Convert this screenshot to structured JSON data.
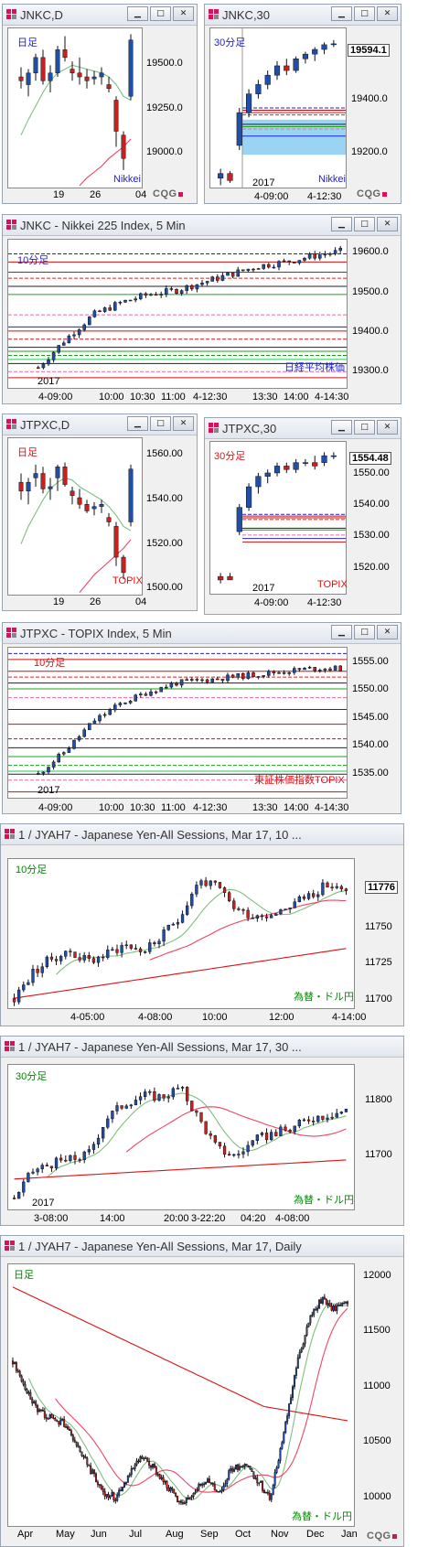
{
  "windows": [
    {
      "title": "JNKC,D"
    },
    {
      "title": "JNKC,30"
    },
    {
      "title": "JNKC - Nikkei 225 Index, 5 Min"
    },
    {
      "title": "JTPXC,D"
    },
    {
      "title": "JTPXC,30"
    },
    {
      "title": "JTPXC - TOPIX Index, 5 Min"
    },
    {
      "title": "1 / JYAH7 - Japanese Yen-All Sessions, Mar 17, 10 ..."
    },
    {
      "title": "1 / JYAH7 - Japanese Yen-All Sessions, Mar 17, 30 ..."
    },
    {
      "title": "1 / JYAH7 - Japanese Yen-All Sessions, Mar 17, Daily"
    }
  ],
  "colors": {
    "up": "#1f4fa8",
    "down": "#cc1f1f",
    "ma_short": "#7fbf7f",
    "ma_long": "#ee4466",
    "ma_red": "#dd1111",
    "blue_label": "#2222cc",
    "red_label": "#dd1111",
    "green_label": "#008800"
  },
  "cqg_label": "CQG",
  "chart_data": [
    {
      "type": "candlestick",
      "label": "日足",
      "note": "Nikkei",
      "x_ticks": [
        "19",
        "26",
        "04"
      ],
      "y_ticks": [
        "19500.0",
        "19250.0",
        "19000.0"
      ],
      "ylim": [
        18830,
        19650
      ],
      "candles": [
        [
          19400,
          19450,
          19340,
          19380
        ],
        [
          19360,
          19440,
          19300,
          19420
        ],
        [
          19420,
          19520,
          19380,
          19500
        ],
        [
          19500,
          19540,
          19360,
          19380
        ],
        [
          19380,
          19460,
          19320,
          19420
        ],
        [
          19420,
          19560,
          19400,
          19540
        ],
        [
          19540,
          19610,
          19480,
          19500
        ],
        [
          19440,
          19480,
          19380,
          19420
        ],
        [
          19420,
          19500,
          19360,
          19400
        ],
        [
          19400,
          19440,
          19340,
          19380
        ],
        [
          19390,
          19430,
          19360,
          19400
        ],
        [
          19400,
          19450,
          19360,
          19420
        ],
        [
          19360,
          19400,
          19320,
          19340
        ],
        [
          19280,
          19300,
          19040,
          19120
        ],
        [
          19100,
          19120,
          18920,
          18980
        ],
        [
          19300,
          19620,
          19280,
          19590
        ]
      ],
      "ma_short": [
        19100,
        19180,
        19250,
        19320,
        19380,
        19420,
        19440,
        19460,
        19450,
        19440,
        19430,
        19420,
        19400,
        19360,
        19300,
        19280
      ],
      "ma_long": [
        null,
        null,
        null,
        null,
        null,
        null,
        null,
        null,
        18840,
        18880,
        18910,
        18940,
        18980,
        19010,
        19040,
        19080
      ]
    },
    {
      "type": "candlestick",
      "label": "30分足",
      "note": "Nikkei",
      "year": "2017",
      "x_ticks": [
        "4-09:00",
        "4-12:30"
      ],
      "y_ticks": [
        "19400.0",
        "19200.0"
      ],
      "ylim": [
        18980,
        19660
      ],
      "last": "19594.1",
      "candles": [
        [
          19020,
          19060,
          18990,
          19040
        ],
        [
          19040,
          19050,
          19000,
          19010
        ],
        [
          19160,
          19320,
          19140,
          19300
        ],
        [
          19300,
          19400,
          19280,
          19380
        ],
        [
          19380,
          19440,
          19360,
          19420
        ],
        [
          19420,
          19480,
          19400,
          19460
        ],
        [
          19460,
          19520,
          19440,
          19500
        ],
        [
          19500,
          19530,
          19460,
          19480
        ],
        [
          19480,
          19540,
          19470,
          19530
        ],
        [
          19530,
          19560,
          19510,
          19550
        ],
        [
          19550,
          19580,
          19520,
          19570
        ],
        [
          19570,
          19600,
          19550,
          19590
        ],
        [
          19590,
          19610,
          19580,
          19594
        ]
      ],
      "levels": [
        19320,
        19310,
        19300,
        19290,
        19250,
        19240,
        19230,
        19200
      ],
      "zone": [
        19120,
        19270
      ]
    },
    {
      "type": "candlestick",
      "label": "10分足",
      "note": "日経平均株価",
      "year": "2017",
      "x_ticks": [
        "4-09:00",
        "10:00",
        "10:30",
        "11:00",
        "4-12:30",
        "13:30",
        "14:00",
        "4-14:30"
      ],
      "y_ticks": [
        "19600.0",
        "19500.0",
        "19400.0",
        "19300.0"
      ],
      "ylim": [
        19260,
        19625
      ],
      "candles_count": 60,
      "start": 19310,
      "end": 19596,
      "levels": [
        19590,
        19570,
        19545,
        19530,
        19510,
        19490,
        19440,
        19410,
        19400,
        19380,
        19360,
        19350,
        19340,
        19330,
        19320,
        19300,
        19285
      ]
    },
    {
      "type": "candlestick",
      "label": "日足",
      "note": "TOPIX",
      "x_ticks": [
        "19",
        "26",
        "04"
      ],
      "y_ticks": [
        "1560.00",
        "1540.00",
        "1520.00",
        "1500.00"
      ],
      "ylim": [
        1497,
        1568
      ],
      "candles": [
        [
          1548,
          1552,
          1540,
          1544
        ],
        [
          1544,
          1550,
          1538,
          1548
        ],
        [
          1550,
          1556,
          1546,
          1552
        ],
        [
          1552,
          1555,
          1543,
          1545
        ],
        [
          1545,
          1550,
          1540,
          1546
        ],
        [
          1550,
          1556,
          1544,
          1555
        ],
        [
          1555,
          1557,
          1546,
          1547
        ],
        [
          1544,
          1546,
          1538,
          1542
        ],
        [
          1541,
          1545,
          1536,
          1538
        ],
        [
          1538,
          1540,
          1534,
          1535
        ],
        [
          1536,
          1539,
          1533,
          1537
        ],
        [
          1537,
          1540,
          1534,
          1538
        ],
        [
          1532,
          1534,
          1528,
          1530
        ],
        [
          1528,
          1530,
          1510,
          1514
        ],
        [
          1514,
          1515,
          1504,
          1507
        ],
        [
          1530,
          1556,
          1528,
          1554
        ]
      ],
      "ma_short": [
        1520,
        1528,
        1534,
        1540,
        1545,
        1548,
        1550,
        1549,
        1546,
        1544,
        1542,
        1540,
        1537,
        1533,
        1528,
        1526
      ],
      "ma_long": [
        null,
        null,
        null,
        null,
        null,
        null,
        null,
        null,
        1498,
        1502,
        1506,
        1509,
        1512,
        1515,
        1518,
        1522
      ]
    },
    {
      "type": "candlestick",
      "label": "30分足",
      "note": "TOPIX",
      "year": "2017",
      "x_ticks": [
        "4-09:00",
        "4-12:30"
      ],
      "y_ticks": [
        "1550.00",
        "1540.00",
        "1530.00",
        "1520.00"
      ],
      "ylim": [
        1514,
        1558
      ],
      "last": "1554.48",
      "candles": [
        [
          1519,
          1520,
          1517,
          1518
        ],
        [
          1519,
          1520,
          1518,
          1518
        ],
        [
          1532,
          1540,
          1531,
          1539
        ],
        [
          1539,
          1546,
          1538,
          1545
        ],
        [
          1545,
          1549,
          1543,
          1548
        ],
        [
          1548,
          1550,
          1546,
          1549
        ],
        [
          1549,
          1552,
          1548,
          1551
        ],
        [
          1551,
          1552,
          1549,
          1550
        ],
        [
          1550,
          1553,
          1549,
          1552
        ],
        [
          1552,
          1553,
          1551,
          1552
        ],
        [
          1552,
          1554,
          1550,
          1551
        ],
        [
          1552,
          1555,
          1551,
          1554
        ],
        [
          1554,
          1555,
          1553,
          1554
        ]
      ],
      "levels": [
        1537,
        1536.5,
        1536,
        1535.5,
        1533,
        1532.5,
        1531,
        1530,
        1529
      ]
    },
    {
      "type": "candlestick",
      "label": "10分足",
      "note": "東証株価指数TOPIX",
      "year": "2017",
      "x_ticks": [
        "4-09:00",
        "10:00",
        "10:30",
        "11:00",
        "4-12:30",
        "13:30",
        "14:00",
        "4-14:30"
      ],
      "y_ticks": [
        "1555.00",
        "1550.00",
        "1545.00",
        "1540.00",
        "1535.00"
      ],
      "ylim": [
        1532,
        1557.5
      ],
      "candles_count": 60,
      "start": 1536,
      "end": 1554,
      "levels": [
        1556.5,
        1555.5,
        1553.5,
        1552.5,
        1551.5,
        1550.5,
        1549,
        1547,
        1544.5,
        1542,
        1540.5,
        1539,
        1537.5,
        1536.5,
        1536,
        1535,
        1533
      ]
    },
    {
      "type": "candlestick",
      "label": "10分足",
      "note": "為替・ドル円",
      "x_ticks": [
        "4-05:00",
        "4-08:00",
        "10:00",
        "12:00",
        "4-14:00"
      ],
      "y_ticks": [
        "11750",
        "11725",
        "11700"
      ],
      "ylim": [
        11695,
        11800
      ],
      "last": "11776",
      "candles_count": 72
    },
    {
      "type": "candlestick",
      "label": "30分足",
      "note": "為替・ドル円",
      "year": "2017",
      "x_ticks": [
        "3-08:00",
        "14:00",
        "20:00",
        "3-22:20",
        "04:20",
        "4-08:00"
      ],
      "y_ticks": [
        "11800",
        "11700"
      ],
      "ylim": [
        11640,
        11830
      ],
      "candles_count": 72
    },
    {
      "type": "candlestick",
      "label": "日足",
      "note": "為替・ドル円",
      "x_ticks": [
        "Apr",
        "May",
        "Jun",
        "Jul",
        "Aug",
        "Sep",
        "Oct",
        "Nov",
        "Dec",
        "Jan"
      ],
      "y_ticks": [
        "12000",
        "11500",
        "11000",
        "10500",
        "10000"
      ],
      "ylim": [
        9800,
        12100
      ],
      "candles_count": 190
    }
  ]
}
